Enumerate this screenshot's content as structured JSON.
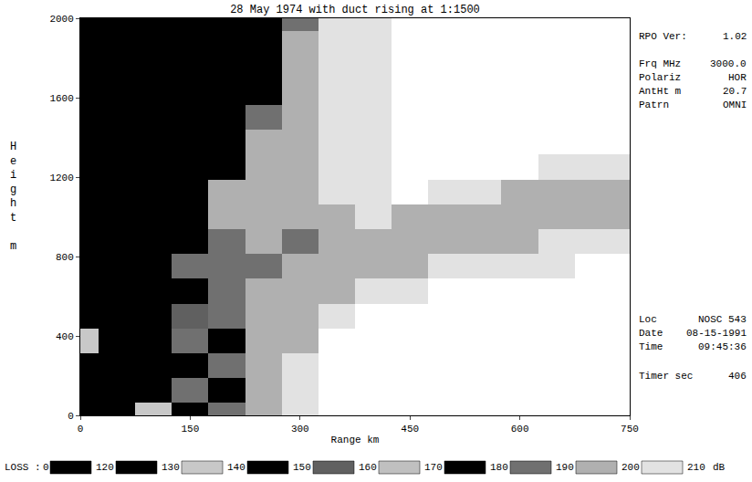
{
  "chart_data": {
    "type": "heatmap",
    "title": "28 May 1974 with duct rising at 1:1500",
    "x_label": "Range km",
    "y_label": "Height m",
    "xlim": [
      0,
      750
    ],
    "xticks": [
      0,
      150,
      300,
      450,
      600,
      750
    ],
    "ylim": [
      0,
      2000
    ],
    "yticks": [
      0,
      400,
      800,
      1200,
      1600,
      2000
    ],
    "grid": false,
    "x": [
      0,
      50,
      100,
      150,
      200,
      250,
      300,
      350,
      400,
      450,
      500,
      550,
      600,
      650,
      700,
      750
    ],
    "y": [
      0,
      125,
      250,
      375,
      500,
      625,
      750,
      875,
      1000,
      1125,
      1250,
      1375,
      1500,
      1625,
      1750,
      1875,
      2000
    ],
    "z": [
      [
        125,
        145,
        135,
        175,
        185,
        195,
        205,
        null,
        null,
        null,
        null,
        null,
        null,
        null,
        null,
        null
      ],
      [
        145,
        125,
        175,
        185,
        175,
        195,
        205,
        null,
        null,
        null,
        null,
        null,
        null,
        null,
        null,
        null
      ],
      [
        125,
        175,
        145,
        175,
        185,
        195,
        205,
        null,
        null,
        null,
        null,
        null,
        null,
        null,
        null,
        null
      ],
      [
        135,
        145,
        125,
        185,
        175,
        195,
        198,
        null,
        null,
        null,
        null,
        null,
        null,
        null,
        null,
        null
      ],
      [
        145,
        125,
        175,
        155,
        185,
        195,
        198,
        205,
        null,
        null,
        null,
        null,
        null,
        null,
        null,
        null
      ],
      [
        125,
        175,
        145,
        175,
        185,
        195,
        195,
        195,
        205,
        205,
        null,
        null,
        null,
        null,
        null,
        null
      ],
      [
        175,
        125,
        145,
        185,
        185,
        185,
        195,
        195,
        195,
        195,
        205,
        205,
        205,
        205,
        null,
        null
      ],
      [
        125,
        145,
        125,
        175,
        185,
        195,
        185,
        195,
        195,
        195,
        195,
        195,
        195,
        205,
        205,
        205
      ],
      [
        145,
        125,
        175,
        145,
        195,
        195,
        195,
        195,
        205,
        195,
        195,
        195,
        195,
        195,
        195,
        195
      ],
      [
        125,
        175,
        125,
        145,
        195,
        195,
        195,
        205,
        205,
        null,
        205,
        205,
        195,
        195,
        195,
        195
      ],
      [
        175,
        125,
        145,
        125,
        175,
        195,
        195,
        205,
        205,
        null,
        null,
        null,
        null,
        205,
        205,
        205
      ],
      [
        125,
        145,
        175,
        125,
        145,
        195,
        195,
        205,
        205,
        null,
        null,
        null,
        null,
        null,
        null,
        null
      ],
      [
        145,
        125,
        125,
        175,
        125,
        185,
        195,
        205,
        205,
        null,
        null,
        null,
        null,
        null,
        null,
        null
      ],
      [
        125,
        175,
        145,
        125,
        145,
        175,
        195,
        205,
        205,
        null,
        null,
        null,
        null,
        null,
        null,
        null
      ],
      [
        175,
        125,
        125,
        145,
        125,
        175,
        195,
        205,
        205,
        null,
        null,
        null,
        null,
        null,
        null,
        null
      ],
      [
        125,
        145,
        175,
        125,
        145,
        145,
        195,
        205,
        205,
        null,
        null,
        null,
        null,
        null,
        null,
        null
      ],
      [
        145,
        125,
        125,
        175,
        125,
        145,
        185,
        205,
        205,
        null,
        null,
        null,
        null,
        null,
        null,
        null
      ]
    ],
    "colorbar": {
      "title": "LOSS :",
      "unit": "dB",
      "range": [
        0,
        210
      ],
      "ticks": [
        0,
        120,
        130,
        140,
        150,
        160,
        170,
        180,
        190,
        200,
        210
      ],
      "colors": [
        "#000000",
        "#000000",
        "#c8c8c8",
        "#000000",
        "#606060",
        "#c0c0c0",
        "#000000",
        "#707070",
        "#b0b0b0",
        "#e2e2e2"
      ]
    },
    "info_top": [
      {
        "label": "RPO Ver:",
        "value": "1.02"
      },
      {
        "label": "Frq MHz",
        "value": "3000.0"
      },
      {
        "label": "Polariz",
        "value": "HOR"
      },
      {
        "label": "AntHt m",
        "value": "20.7"
      },
      {
        "label": "Patrn",
        "value": "OMNI"
      }
    ],
    "info_bottom": [
      {
        "label": "Loc",
        "value": "NOSC 543"
      },
      {
        "label": "Date",
        "value": "08-15-1991"
      },
      {
        "label": "Time",
        "value": "09:45:36"
      },
      {
        "label": "Timer sec",
        "value": "406"
      }
    ]
  }
}
